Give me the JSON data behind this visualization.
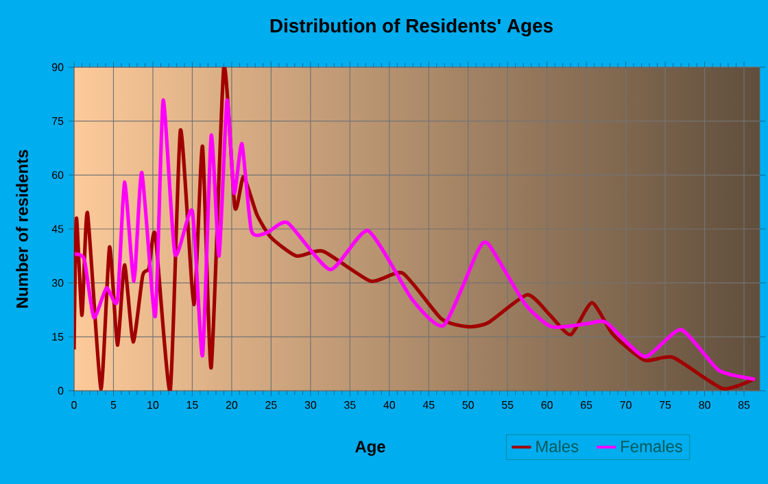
{
  "chart_data": {
    "type": "line",
    "title": "Distribution of Residents' Ages",
    "xlabel": "Age",
    "ylabel": "Number of residents",
    "xlim": [
      0,
      87
    ],
    "ylim": [
      0,
      90
    ],
    "xticks": [
      0,
      5,
      10,
      15,
      20,
      25,
      30,
      35,
      40,
      45,
      50,
      55,
      60,
      65,
      70,
      75,
      80,
      85
    ],
    "yticks": [
      0,
      15,
      30,
      45,
      60,
      75,
      90
    ],
    "grid": true,
    "legend": "bottom right",
    "marker": "none",
    "line_style": "solid",
    "series": [
      {
        "name": "Males",
        "color": "#a00000",
        "x": [
          0,
          0.3,
          1,
          1.7,
          3.4,
          4.5,
          5.5,
          6.4,
          7.5,
          8.7,
          9.5,
          10.3,
          12.2,
          13.5,
          15.2,
          16.3,
          17.4,
          19,
          20.4,
          21.5,
          23.2,
          25,
          28.2,
          31.6,
          37.6,
          41.7,
          46.6,
          50,
          52.6,
          57.5,
          60.4,
          63,
          65.7,
          68.4,
          72.4,
          76,
          82.3,
          86.4
        ],
        "values": [
          11.5,
          48,
          21,
          49.5,
          0.5,
          40,
          12.7,
          35,
          13.6,
          32,
          34,
          43.5,
          0,
          72.5,
          24,
          68,
          6.4,
          90,
          51,
          59.5,
          49,
          42.6,
          37.5,
          38.8,
          30.5,
          32.7,
          20,
          17.8,
          19,
          26.7,
          21,
          15.6,
          24.5,
          15.6,
          8.5,
          9.3,
          0.6,
          3.4
        ]
      },
      {
        "name": "Females",
        "color": "#ff00ff",
        "x": [
          0.1,
          1.3,
          2.5,
          4.1,
          5.5,
          6.4,
          7.6,
          8.6,
          10.3,
          11.3,
          12.8,
          15,
          16.3,
          17.4,
          18.4,
          19.4,
          20.3,
          21.3,
          22.5,
          24.5,
          27.1,
          32.5,
          37.3,
          42.9,
          46.9,
          51.2,
          52.6,
          57.2,
          60.6,
          65.2,
          67.5,
          72.4,
          77,
          81.8,
          86.4
        ],
        "values": [
          38,
          36.5,
          20.4,
          28.6,
          25,
          58,
          30.5,
          60.7,
          20.7,
          80.8,
          38,
          50,
          9.8,
          71,
          37.5,
          80.8,
          55,
          68.7,
          44.5,
          44,
          46.7,
          33.7,
          44.5,
          25.4,
          18.2,
          38.8,
          40.7,
          24.2,
          17.8,
          18.7,
          19,
          9.5,
          17,
          5.7,
          3.2
        ]
      }
    ]
  }
}
